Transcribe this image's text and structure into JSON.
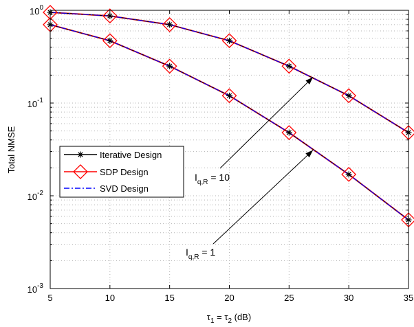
{
  "chart_data": {
    "type": "line",
    "xlabel": {
      "main": "τ",
      "sub1": "1",
      "mid": " = τ",
      "sub2": "2",
      "tail": " (dB)"
    },
    "ylabel": "Total NMSE",
    "x_ticks": [
      "5",
      "10",
      "15",
      "20",
      "25",
      "30",
      "35"
    ],
    "y_ticks": [
      {
        "base": "10",
        "exp": "0",
        "value": 1
      },
      {
        "base": "10",
        "exp": "-1",
        "value": 0.1
      },
      {
        "base": "10",
        "exp": "-2",
        "value": 0.01
      },
      {
        "base": "10",
        "exp": "-3",
        "value": 0.001
      }
    ],
    "xlim": [
      5,
      35
    ],
    "ylim": [
      0.001,
      1
    ],
    "yscale": "log",
    "grid": true,
    "legend_position": "left-middle",
    "x": [
      5,
      10,
      15,
      20,
      25,
      30,
      35
    ],
    "curve_groups": [
      {
        "label": "I_q,R = 10",
        "values": [
          0.95,
          0.87,
          0.7,
          0.47,
          0.25,
          0.12,
          0.048
        ]
      },
      {
        "label": "I_q,R = 1",
        "values": [
          0.7,
          0.47,
          0.25,
          0.12,
          0.048,
          0.017,
          0.0055
        ]
      }
    ],
    "series": [
      {
        "name": "Iterative Design",
        "color": "#000000",
        "style": "solid",
        "marker": "asterisk"
      },
      {
        "name": "SDP Design",
        "color": "#ff0000",
        "style": "solid",
        "marker": "diamond"
      },
      {
        "name": "SVD Design",
        "color": "#0000ff",
        "style": "dashdot",
        "marker": "none"
      }
    ],
    "annotations": [
      {
        "base": "I",
        "sub": "q,R",
        "tail": " = 10",
        "target_x": 27,
        "target_y": 0.19
      },
      {
        "base": "I",
        "sub": "q,R",
        "tail": " = 1",
        "target_x": 27,
        "target_y": 0.031
      }
    ]
  }
}
